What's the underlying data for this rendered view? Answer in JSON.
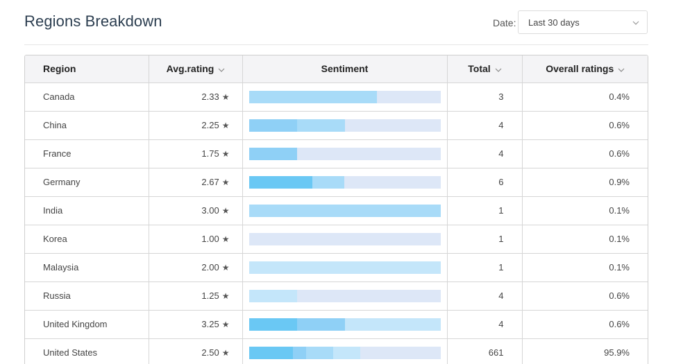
{
  "header": {
    "title": "Regions Breakdown",
    "date_label": "Date:",
    "date_value": "Last 30 days"
  },
  "table": {
    "columns": {
      "region": "Region",
      "avg_rating": "Avg.rating",
      "sentiment": "Sentiment",
      "total": "Total",
      "overall": "Overall ratings"
    },
    "sentiment_colors": [
      "#6ac8f4",
      "#8fd0f6",
      "#a8dbf8",
      "#c4e6fa",
      "#dde7f7"
    ],
    "rows": [
      {
        "region": "Canada",
        "avg": "2.33",
        "total": "3",
        "overall": "0.4%",
        "sentiment": [
          0,
          0,
          0.667,
          0,
          0.333
        ]
      },
      {
        "region": "China",
        "avg": "2.25",
        "total": "4",
        "overall": "0.6%",
        "sentiment": [
          0,
          0.25,
          0.25,
          0,
          0.5
        ]
      },
      {
        "region": "France",
        "avg": "1.75",
        "total": "4",
        "overall": "0.6%",
        "sentiment": [
          0,
          0.25,
          0,
          0,
          0.75
        ]
      },
      {
        "region": "Germany",
        "avg": "2.67",
        "total": "6",
        "overall": "0.9%",
        "sentiment": [
          0.333,
          0,
          0.167,
          0,
          0.5
        ]
      },
      {
        "region": "India",
        "avg": "3.00",
        "total": "1",
        "overall": "0.1%",
        "sentiment": [
          0,
          0,
          1,
          0,
          0
        ]
      },
      {
        "region": "Korea",
        "avg": "1.00",
        "total": "1",
        "overall": "0.1%",
        "sentiment": [
          0,
          0,
          0,
          0,
          1
        ]
      },
      {
        "region": "Malaysia",
        "avg": "2.00",
        "total": "1",
        "overall": "0.1%",
        "sentiment": [
          0,
          0,
          0,
          1,
          0
        ]
      },
      {
        "region": "Russia",
        "avg": "1.25",
        "total": "4",
        "overall": "0.6%",
        "sentiment": [
          0,
          0,
          0,
          0.25,
          0.75
        ]
      },
      {
        "region": "United Kingdom",
        "avg": "3.25",
        "total": "4",
        "overall": "0.6%",
        "sentiment": [
          0.25,
          0.25,
          0,
          0.5,
          0
        ]
      },
      {
        "region": "United States",
        "avg": "2.50",
        "total": "661",
        "overall": "95.9%",
        "sentiment": [
          0.23,
          0.07,
          0.14,
          0.14,
          0.42
        ]
      }
    ]
  }
}
